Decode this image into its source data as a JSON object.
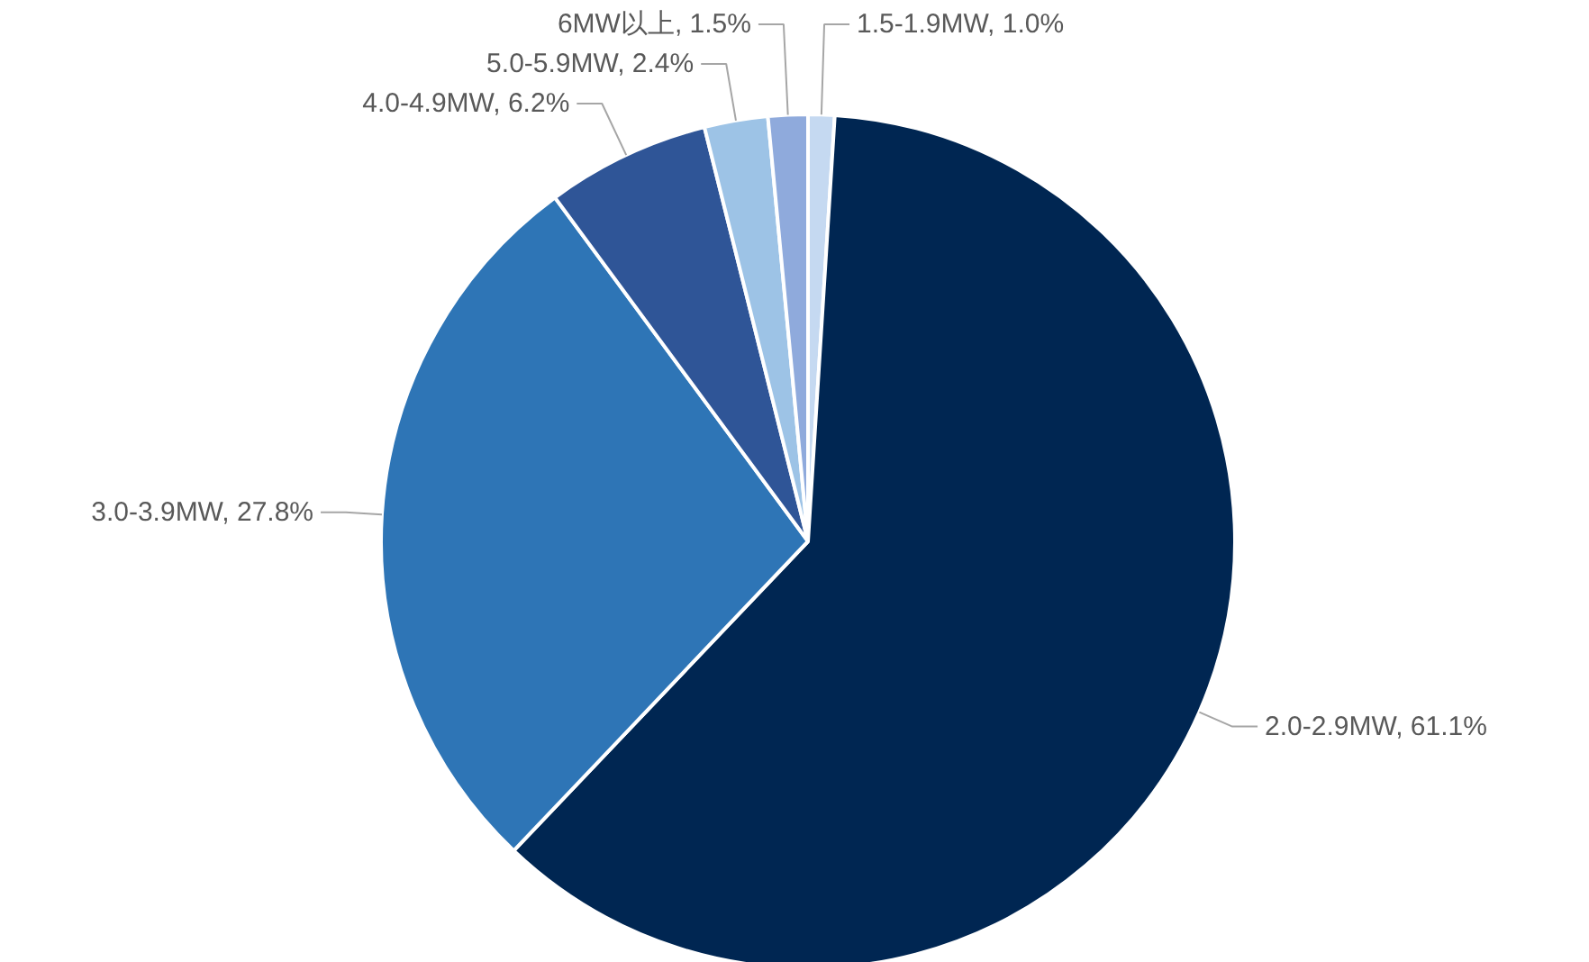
{
  "chart_data": {
    "type": "pie",
    "categories": [
      "1.5-1.9MW",
      "2.0-2.9MW",
      "3.0-3.9MW",
      "4.0-4.9MW",
      "5.0-5.9MW",
      "6MW以上"
    ],
    "values": [
      1.0,
      61.1,
      27.8,
      6.2,
      2.4,
      1.5
    ],
    "colors": [
      "#c5d9f1",
      "#002652",
      "#2e75b6",
      "#2f5597",
      "#9dc3e6",
      "#8faadc"
    ],
    "value_labels": [
      "1.0%",
      "61.1%",
      "27.8%",
      "6.2%",
      "2.4%",
      "1.5%"
    ]
  }
}
